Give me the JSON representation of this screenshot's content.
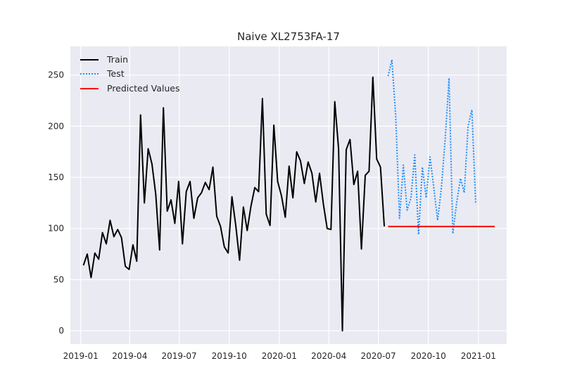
{
  "chart_data": {
    "type": "line",
    "title": "Naive XL2753FA-17",
    "xlabel": "",
    "ylabel": "",
    "xlim": [
      "2018-12-13",
      "2021-02-22"
    ],
    "ylim": [
      -13,
      278
    ],
    "grid": true,
    "legend_position": "top-left",
    "x_ticks": [
      "2019-01",
      "2019-04",
      "2019-07",
      "2019-10",
      "2020-01",
      "2020-04",
      "2020-07",
      "2020-10",
      "2021-01"
    ],
    "y_ticks": [
      0,
      50,
      100,
      150,
      200,
      250
    ],
    "series": [
      {
        "name": "Train",
        "color": "#000000",
        "style": "solid",
        "points": [
          [
            "2019-01-06",
            64
          ],
          [
            "2019-01-13",
            75
          ],
          [
            "2019-01-20",
            52
          ],
          [
            "2019-01-27",
            76
          ],
          [
            "2019-02-03",
            70
          ],
          [
            "2019-02-10",
            96
          ],
          [
            "2019-02-17",
            85
          ],
          [
            "2019-02-24",
            108
          ],
          [
            "2019-03-03",
            92
          ],
          [
            "2019-03-10",
            99
          ],
          [
            "2019-03-17",
            91
          ],
          [
            "2019-03-24",
            63
          ],
          [
            "2019-03-31",
            60
          ],
          [
            "2019-04-07",
            84
          ],
          [
            "2019-04-14",
            68
          ],
          [
            "2019-04-21",
            211
          ],
          [
            "2019-04-28",
            125
          ],
          [
            "2019-05-05",
            178
          ],
          [
            "2019-05-12",
            163
          ],
          [
            "2019-05-19",
            133
          ],
          [
            "2019-05-26",
            79
          ],
          [
            "2019-06-02",
            218
          ],
          [
            "2019-06-09",
            117
          ],
          [
            "2019-06-16",
            128
          ],
          [
            "2019-06-23",
            105
          ],
          [
            "2019-06-30",
            146
          ],
          [
            "2019-07-07",
            85
          ],
          [
            "2019-07-14",
            136
          ],
          [
            "2019-07-21",
            146
          ],
          [
            "2019-07-28",
            110
          ],
          [
            "2019-08-04",
            130
          ],
          [
            "2019-08-11",
            135
          ],
          [
            "2019-08-18",
            145
          ],
          [
            "2019-08-25",
            138
          ],
          [
            "2019-09-01",
            160
          ],
          [
            "2019-09-08",
            112
          ],
          [
            "2019-09-15",
            102
          ],
          [
            "2019-09-22",
            82
          ],
          [
            "2019-09-29",
            76
          ],
          [
            "2019-10-06",
            131
          ],
          [
            "2019-10-13",
            103
          ],
          [
            "2019-10-20",
            69
          ],
          [
            "2019-10-27",
            121
          ],
          [
            "2019-11-03",
            98
          ],
          [
            "2019-11-10",
            122
          ],
          [
            "2019-11-17",
            140
          ],
          [
            "2019-11-24",
            136
          ],
          [
            "2019-12-01",
            227
          ],
          [
            "2019-12-08",
            114
          ],
          [
            "2019-12-15",
            103
          ],
          [
            "2019-12-22",
            201
          ],
          [
            "2019-12-29",
            146
          ],
          [
            "2020-01-05",
            132
          ],
          [
            "2020-01-12",
            111
          ],
          [
            "2020-01-19",
            161
          ],
          [
            "2020-01-26",
            130
          ],
          [
            "2020-02-02",
            175
          ],
          [
            "2020-02-09",
            166
          ],
          [
            "2020-02-16",
            144
          ],
          [
            "2020-02-23",
            165
          ],
          [
            "2020-03-01",
            154
          ],
          [
            "2020-03-08",
            126
          ],
          [
            "2020-03-15",
            154
          ],
          [
            "2020-03-22",
            124
          ],
          [
            "2020-03-29",
            100
          ],
          [
            "2020-04-05",
            99
          ],
          [
            "2020-04-12",
            224
          ],
          [
            "2020-04-19",
            178
          ],
          [
            "2020-04-26",
            0
          ],
          [
            "2020-05-03",
            177
          ],
          [
            "2020-05-10",
            187
          ],
          [
            "2020-05-17",
            143
          ],
          [
            "2020-05-24",
            156
          ],
          [
            "2020-05-31",
            80
          ],
          [
            "2020-06-07",
            152
          ],
          [
            "2020-06-14",
            156
          ],
          [
            "2020-06-21",
            248
          ],
          [
            "2020-06-28",
            168
          ],
          [
            "2020-07-05",
            160
          ],
          [
            "2020-07-12",
            102
          ]
        ]
      },
      {
        "name": "Test",
        "color": "#1e90ff",
        "style": "dotted",
        "points": [
          [
            "2020-07-19",
            249
          ],
          [
            "2020-07-26",
            265
          ],
          [
            "2020-08-02",
            210
          ],
          [
            "2020-08-09",
            110
          ],
          [
            "2020-08-16",
            162
          ],
          [
            "2020-08-23",
            118
          ],
          [
            "2020-08-30",
            130
          ],
          [
            "2020-09-06",
            172
          ],
          [
            "2020-09-13",
            94
          ],
          [
            "2020-09-20",
            160
          ],
          [
            "2020-09-27",
            130
          ],
          [
            "2020-10-04",
            170
          ],
          [
            "2020-10-11",
            140
          ],
          [
            "2020-10-18",
            108
          ],
          [
            "2020-10-25",
            140
          ],
          [
            "2020-11-01",
            188
          ],
          [
            "2020-11-08",
            247
          ],
          [
            "2020-11-15",
            95
          ],
          [
            "2020-11-22",
            125
          ],
          [
            "2020-11-29",
            149
          ],
          [
            "2020-12-06",
            135
          ],
          [
            "2020-12-13",
            200
          ],
          [
            "2020-12-20",
            216
          ],
          [
            "2020-12-27",
            124
          ]
        ]
      },
      {
        "name": "Predicted Values",
        "color": "#ff0000",
        "style": "solid",
        "points": [
          [
            "2020-07-19",
            102
          ],
          [
            "2021-01-31",
            102
          ]
        ]
      }
    ]
  }
}
